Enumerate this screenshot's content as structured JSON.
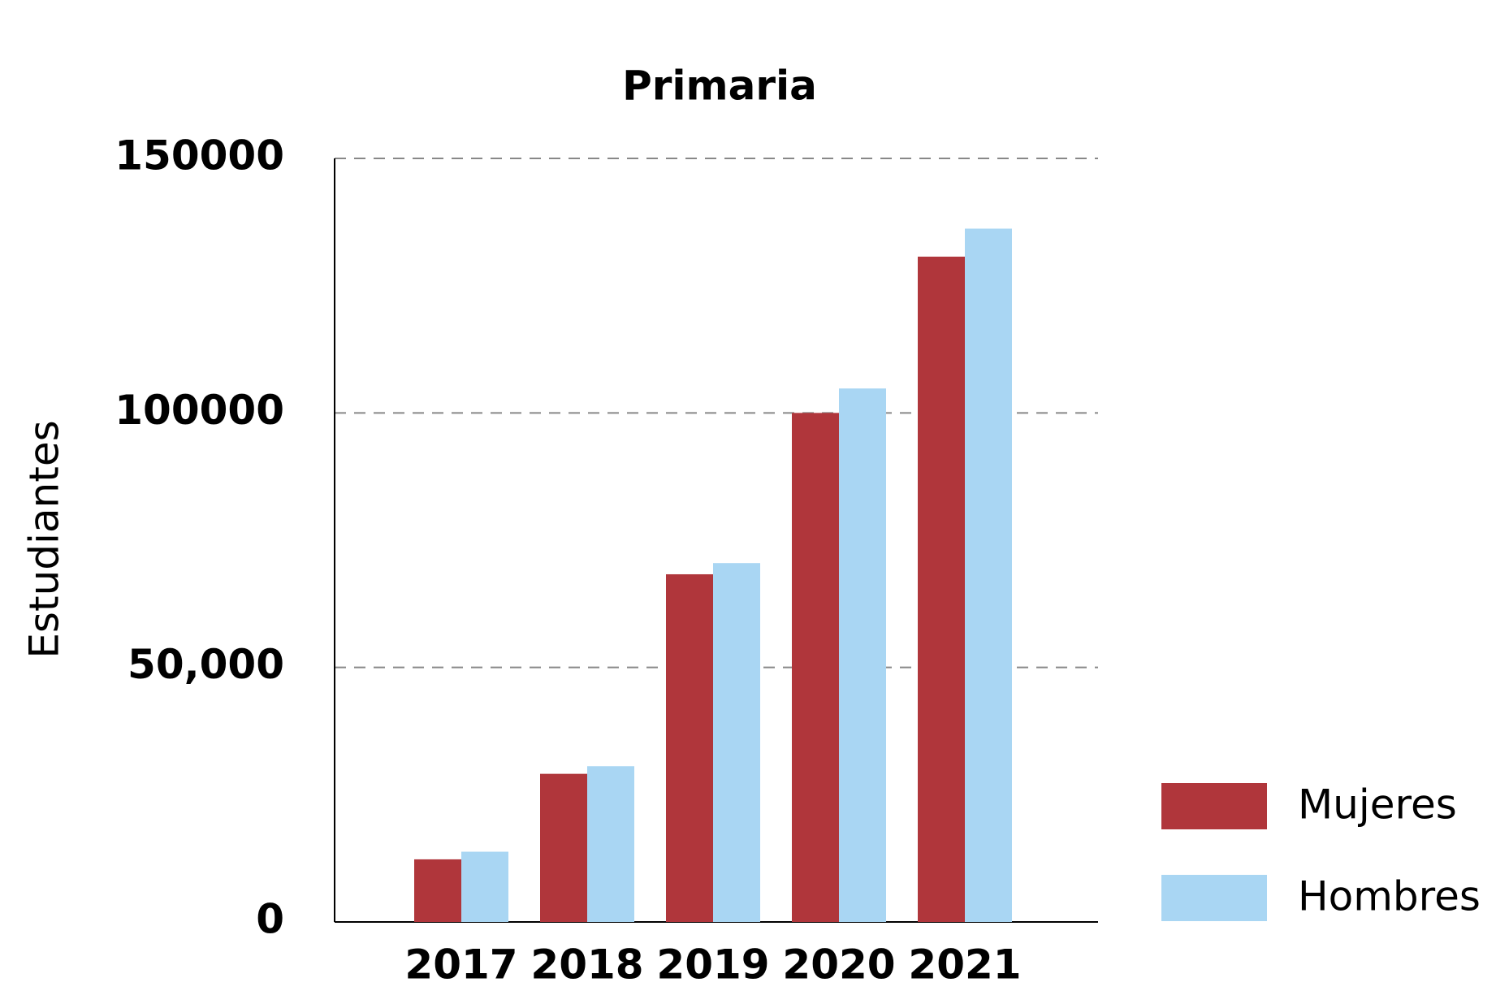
{
  "chart_data": {
    "type": "bar",
    "title": "Primaria",
    "y_label": "Estudiantes",
    "categories": [
      "2017",
      "2018",
      "2019",
      "2020",
      "2021"
    ],
    "series": [
      {
        "name": "Mujeres",
        "color": "#b0363b",
        "values": [
          12300,
          29100,
          68300,
          100000,
          130700
        ]
      },
      {
        "name": "Hombres",
        "color": "#a9d6f3",
        "values": [
          13800,
          30600,
          70500,
          104800,
          136200
        ]
      }
    ],
    "ylim": [
      0,
      150000
    ],
    "yticks": [
      0,
      {
        "value": 50000,
        "label": "50,000"
      },
      100000,
      150000
    ],
    "grid": true,
    "legend": "lower right"
  }
}
